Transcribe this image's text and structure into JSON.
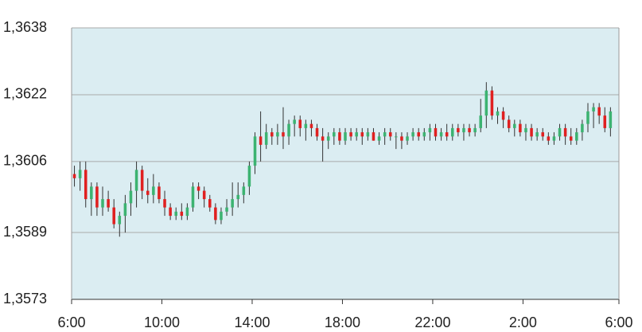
{
  "chart_data": {
    "type": "candlestick",
    "up_color": "#3cb371",
    "down_color": "#e02020",
    "wick_color": "#333333",
    "background": "#dbedf2",
    "grid": true,
    "ylim": [
      1.3573,
      1.3638
    ],
    "yticks": [
      {
        "value": 1.3573,
        "label": "1,3573"
      },
      {
        "value": 1.3589,
        "label": "1,3589"
      },
      {
        "value": 1.3606,
        "label": "1,3606"
      },
      {
        "value": 1.3622,
        "label": "1,3622"
      },
      {
        "value": 1.3638,
        "label": "1,3638"
      }
    ],
    "xlim": [
      0,
      97
    ],
    "xticks": [
      {
        "value": 0,
        "label": "6:00"
      },
      {
        "value": 16,
        "label": "10:00"
      },
      {
        "value": 32,
        "label": "14:00"
      },
      {
        "value": 48,
        "label": "18:00"
      },
      {
        "value": 64,
        "label": "22:00"
      },
      {
        "value": 80,
        "label": "2:00"
      },
      {
        "value": 97,
        "label": "6:00"
      }
    ],
    "candles": [
      [
        1.3603,
        1.3605,
        1.36,
        1.3602
      ],
      [
        1.3602,
        1.3606,
        1.3599,
        1.3604
      ],
      [
        1.3604,
        1.3606,
        1.3595,
        1.3597
      ],
      [
        1.3597,
        1.3601,
        1.3593,
        1.36
      ],
      [
        1.36,
        1.3601,
        1.3593,
        1.3595
      ],
      [
        1.3595,
        1.36,
        1.3593,
        1.3597
      ],
      [
        1.3597,
        1.3599,
        1.3594,
        1.3595
      ],
      [
        1.3595,
        1.3597,
        1.359,
        1.3591
      ],
      [
        1.3591,
        1.3594,
        1.3588,
        1.3593
      ],
      [
        1.3593,
        1.3598,
        1.3589,
        1.3596
      ],
      [
        1.3596,
        1.3601,
        1.3593,
        1.3599
      ],
      [
        1.3599,
        1.3606,
        1.3595,
        1.3604
      ],
      [
        1.3604,
        1.3605,
        1.3597,
        1.3599
      ],
      [
        1.3599,
        1.3602,
        1.3596,
        1.3598
      ],
      [
        1.3598,
        1.3603,
        1.3596,
        1.36
      ],
      [
        1.36,
        1.3601,
        1.3596,
        1.3597
      ],
      [
        1.3597,
        1.3599,
        1.3593,
        1.3595
      ],
      [
        1.3595,
        1.3596,
        1.3592,
        1.3593
      ],
      [
        1.3593,
        1.3595,
        1.3592,
        1.3594
      ],
      [
        1.3594,
        1.3596,
        1.3592,
        1.3593
      ],
      [
        1.3593,
        1.3596,
        1.3592,
        1.3595
      ],
      [
        1.3595,
        1.3601,
        1.3594,
        1.36
      ],
      [
        1.36,
        1.3601,
        1.3597,
        1.3599
      ],
      [
        1.3599,
        1.36,
        1.3595,
        1.3597
      ],
      [
        1.3597,
        1.3598,
        1.3594,
        1.3595
      ],
      [
        1.3595,
        1.3596,
        1.3591,
        1.3592
      ],
      [
        1.3592,
        1.3595,
        1.3591,
        1.3594
      ],
      [
        1.3594,
        1.3597,
        1.3593,
        1.3595
      ],
      [
        1.3595,
        1.3601,
        1.3593,
        1.3597
      ],
      [
        1.3597,
        1.3601,
        1.3595,
        1.3598
      ],
      [
        1.3598,
        1.3601,
        1.3596,
        1.36
      ],
      [
        1.36,
        1.3606,
        1.3598,
        1.3605
      ],
      [
        1.3605,
        1.3613,
        1.3603,
        1.3612
      ],
      [
        1.3612,
        1.3618,
        1.3606,
        1.361
      ],
      [
        1.361,
        1.3615,
        1.3609,
        1.3613
      ],
      [
        1.3613,
        1.3614,
        1.361,
        1.3612
      ],
      [
        1.3612,
        1.3615,
        1.361,
        1.3613
      ],
      [
        1.3613,
        1.3619,
        1.3609,
        1.3612
      ],
      [
        1.3612,
        1.3616,
        1.361,
        1.3615
      ],
      [
        1.3615,
        1.3617,
        1.3612,
        1.3616
      ],
      [
        1.3616,
        1.3617,
        1.3612,
        1.3614
      ],
      [
        1.3614,
        1.3616,
        1.3611,
        1.3615
      ],
      [
        1.3615,
        1.3616,
        1.3612,
        1.3614
      ],
      [
        1.3614,
        1.3615,
        1.3611,
        1.3612
      ],
      [
        1.3612,
        1.3614,
        1.3606,
        1.3611
      ],
      [
        1.3611,
        1.3613,
        1.3609,
        1.3612
      ],
      [
        1.3612,
        1.3614,
        1.361,
        1.3613
      ],
      [
        1.3613,
        1.3614,
        1.361,
        1.3611
      ],
      [
        1.3611,
        1.3614,
        1.361,
        1.3613
      ],
      [
        1.3613,
        1.3614,
        1.3611,
        1.3612
      ],
      [
        1.3612,
        1.3614,
        1.3611,
        1.3613
      ],
      [
        1.3613,
        1.3614,
        1.361,
        1.3612
      ],
      [
        1.3612,
        1.3614,
        1.3611,
        1.3613
      ],
      [
        1.3613,
        1.3614,
        1.3611,
        1.3611
      ],
      [
        1.3611,
        1.3613,
        1.361,
        1.3612
      ],
      [
        1.3612,
        1.3614,
        1.361,
        1.3613
      ],
      [
        1.3613,
        1.3614,
        1.3611,
        1.3612
      ],
      [
        1.3612,
        1.3613,
        1.3609,
        1.3612
      ],
      [
        1.3612,
        1.3613,
        1.3609,
        1.3611
      ],
      [
        1.3611,
        1.3613,
        1.361,
        1.3612
      ],
      [
        1.3612,
        1.3614,
        1.3611,
        1.3613
      ],
      [
        1.3613,
        1.3614,
        1.3611,
        1.3612
      ],
      [
        1.3612,
        1.3614,
        1.3611,
        1.3613
      ],
      [
        1.3613,
        1.3615,
        1.3611,
        1.3614
      ],
      [
        1.3614,
        1.3615,
        1.3611,
        1.3612
      ],
      [
        1.3612,
        1.3614,
        1.3611,
        1.3613
      ],
      [
        1.3613,
        1.3615,
        1.3611,
        1.3612
      ],
      [
        1.3612,
        1.3615,
        1.3611,
        1.3614
      ],
      [
        1.3614,
        1.3615,
        1.3612,
        1.3613
      ],
      [
        1.3613,
        1.3615,
        1.3611,
        1.3614
      ],
      [
        1.3614,
        1.3615,
        1.3612,
        1.3613
      ],
      [
        1.3613,
        1.3615,
        1.3612,
        1.3614
      ],
      [
        1.3614,
        1.3621,
        1.3613,
        1.3617
      ],
      [
        1.3617,
        1.3625,
        1.3614,
        1.3623
      ],
      [
        1.3623,
        1.3624,
        1.3616,
        1.3617
      ],
      [
        1.3617,
        1.3619,
        1.3615,
        1.3618
      ],
      [
        1.3618,
        1.3619,
        1.3614,
        1.3616
      ],
      [
        1.3616,
        1.3617,
        1.3613,
        1.3614
      ],
      [
        1.3614,
        1.3616,
        1.3612,
        1.3615
      ],
      [
        1.3615,
        1.3616,
        1.3612,
        1.3613
      ],
      [
        1.3613,
        1.3615,
        1.3611,
        1.3614
      ],
      [
        1.3614,
        1.3615,
        1.3611,
        1.3612
      ],
      [
        1.3612,
        1.3614,
        1.3611,
        1.3613
      ],
      [
        1.3613,
        1.3614,
        1.3611,
        1.3612
      ],
      [
        1.3612,
        1.3613,
        1.361,
        1.3611
      ],
      [
        1.3611,
        1.3613,
        1.361,
        1.3612
      ],
      [
        1.3612,
        1.3615,
        1.3611,
        1.3614
      ],
      [
        1.3614,
        1.3615,
        1.361,
        1.3612
      ],
      [
        1.3612,
        1.3614,
        1.361,
        1.3611
      ],
      [
        1.3611,
        1.3614,
        1.361,
        1.3613
      ],
      [
        1.3613,
        1.3616,
        1.3611,
        1.3615
      ],
      [
        1.3615,
        1.362,
        1.3613,
        1.3618
      ],
      [
        1.3618,
        1.362,
        1.3614,
        1.3619
      ],
      [
        1.3619,
        1.362,
        1.3615,
        1.3617
      ],
      [
        1.3617,
        1.3619,
        1.3613,
        1.3614
      ],
      [
        1.3614,
        1.3619,
        1.3612,
        1.3618
      ]
    ]
  }
}
